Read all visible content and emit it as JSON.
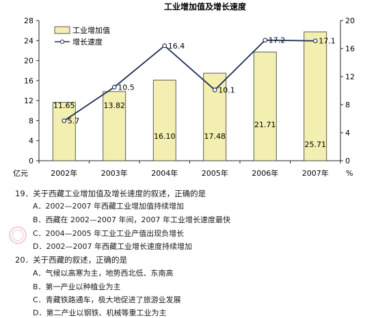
{
  "chart_data": {
    "type": "bar+line",
    "title": "工业增加值及增长速度",
    "categories": [
      "2002年",
      "2003年",
      "2004年",
      "2005年",
      "2006年",
      "2007年"
    ],
    "series": [
      {
        "name": "工业增加值",
        "type": "bar",
        "axis": "left",
        "values": [
          11.65,
          13.82,
          16.1,
          17.48,
          21.71,
          25.71
        ],
        "labels": [
          "11.65",
          "13.82",
          "16.10",
          "17.48",
          "21.71",
          "25.71"
        ],
        "color": "#f2efb0"
      },
      {
        "name": "增长速度",
        "type": "line",
        "axis": "right",
        "values": [
          5.7,
          10.5,
          16.4,
          10.1,
          17.2,
          17.1
        ],
        "labels": [
          "5.7",
          "10.5",
          "16.4",
          "10.1",
          "17.2",
          "17.1"
        ],
        "color": "#1a2a55"
      }
    ],
    "y_left": {
      "unit": "亿元",
      "ylim": [
        0,
        28
      ],
      "ticks": [
        "0",
        "4",
        "8",
        "12",
        "16",
        "20",
        "24",
        "28"
      ]
    },
    "y_right": {
      "unit": "%",
      "ylim": [
        0,
        20
      ],
      "ticks": [
        "0",
        "4",
        "8",
        "12",
        "16",
        "20"
      ]
    },
    "legend_position": "top-left",
    "grid": false
  },
  "questions": [
    {
      "text": "19．关于西藏工业增加值及增长速度的叙述，正确的是",
      "options": [
        "A．2002—2007 年西藏工业增加值持续增加",
        "B．西藏在 2002—2007 年间，2007 年工业增长速度最快",
        "C．2004—2005 年工业工业产值出现负增长",
        "D．2002—2007 年西藏工业增长速度持续增加"
      ]
    },
    {
      "text": "20．关于西藏的叙述，正确的是",
      "options": [
        "A．气候以高寒为主，地势西北低、东南高",
        "B．第一产业以种植业为主",
        "C．青藏铁路通车，极大地促进了旅游业发展",
        "D．第二产业以钢铁、机械等重工业为主"
      ]
    }
  ],
  "colors": {
    "bar_fill": "#f2efb0",
    "bar_stroke": "#333333",
    "line": "#1a2a55",
    "axis": "#222222"
  }
}
